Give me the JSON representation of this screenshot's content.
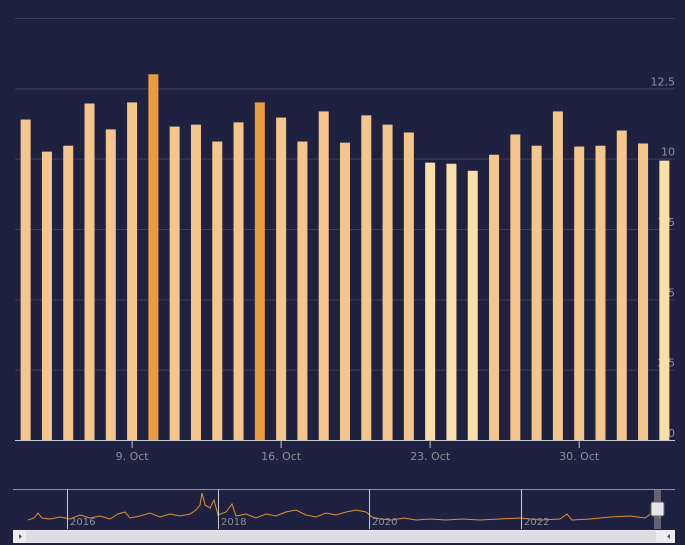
{
  "chart_data": {
    "type": "bar",
    "categories": [
      null,
      null,
      null,
      null,
      null,
      "9. Oct",
      null,
      null,
      null,
      null,
      null,
      null,
      "16. Oct",
      null,
      null,
      null,
      null,
      null,
      null,
      "23. Oct",
      null,
      null,
      null,
      null,
      null,
      null,
      "30. Oct",
      null,
      null,
      null,
      null
    ],
    "values": [
      11.39,
      10.25,
      10.46,
      11.96,
      11.04,
      12.0,
      13.0,
      11.14,
      11.21,
      10.61,
      11.29,
      12.0,
      11.46,
      10.61,
      11.68,
      10.57,
      11.54,
      11.21,
      10.93,
      9.86,
      9.82,
      9.57,
      10.14,
      10.86,
      10.46,
      11.68,
      10.43,
      10.46,
      11.0,
      10.54,
      9.93
    ],
    "colors": [
      "#f5c68c",
      "#f5c68c",
      "#f5c68c",
      "#f5c68c",
      "#f5c68c",
      "#f5c68c",
      "#e89c3c",
      "#f5c68c",
      "#f5c68c",
      "#f5c68c",
      "#f5c68c",
      "#e89c3c",
      "#f5c68c",
      "#f5c68c",
      "#f5c68c",
      "#f5c68c",
      "#f5c68c",
      "#f5c68c",
      "#f5c68c",
      "#fae0a8",
      "#fae0a8",
      "#fae0a8",
      "#f5c68c",
      "#f5c68c",
      "#f5c68c",
      "#f5c68c",
      "#f5c68c",
      "#f5c68c",
      "#f5c68c",
      "#f5c68c",
      "#fae0a8"
    ],
    "ylim": [
      0,
      15
    ],
    "yticks": [
      0,
      2.5,
      5,
      7.5,
      10,
      12.5
    ],
    "grid": true,
    "navigator": {
      "labels": [
        "2016",
        "2018",
        "2020",
        "2022"
      ]
    }
  }
}
